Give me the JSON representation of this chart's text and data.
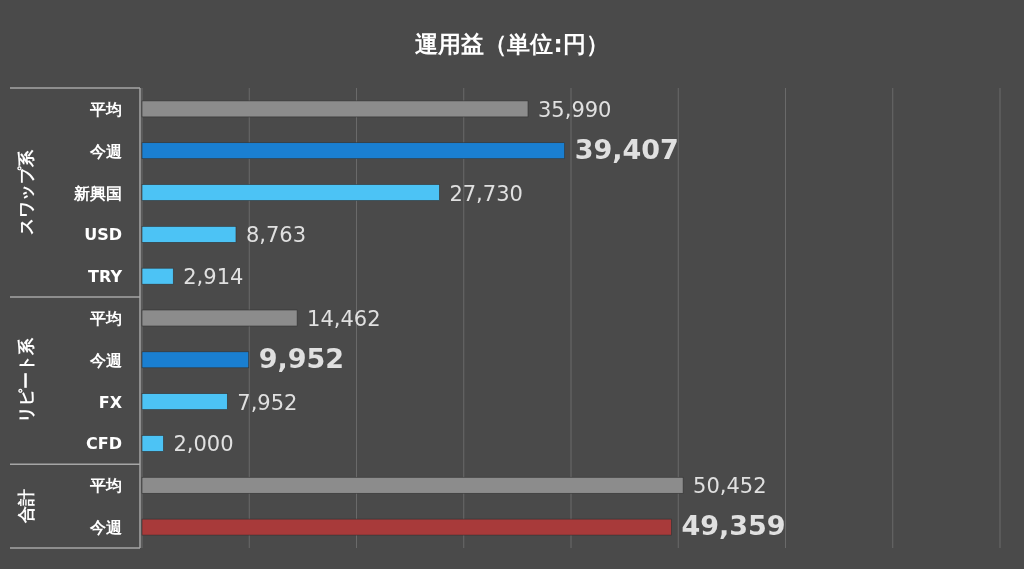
{
  "chart_data": {
    "type": "bar",
    "orientation": "horizontal",
    "title": "運用益（単位:円）",
    "categories": [
      "平均",
      "今週",
      "新興国",
      "USD",
      "TRY",
      "平均",
      "今週",
      "FX",
      "CFD",
      "平均",
      "今週"
    ],
    "values": [
      35990,
      39407,
      27730,
      8763,
      2914,
      14462,
      9952,
      7952,
      2000,
      50452,
      49359
    ],
    "colors": [
      "#8c8c8c",
      "#1a7fd1",
      "#4cc3f5",
      "#4cc3f5",
      "#4cc3f5",
      "#8c8c8c",
      "#1a7fd1",
      "#4cc3f5",
      "#4cc3f5",
      "#8c8c8c",
      "#a83a3a"
    ],
    "value_labels": [
      "35,990",
      "**39,407**",
      "27,730",
      "8,763",
      "2,914",
      "14,462",
      "**9,952**",
      "7,952",
      "2,000",
      "50,452",
      "**49,359**"
    ],
    "annotations": [
      "スワップ系",
      "リピート系",
      "合計"
    ],
    "xlim": [
      0,
      80000
    ],
    "xticks": [
      {
        "value": 0,
        "label": null
      },
      {
        "value": 10000,
        "label": null
      },
      {
        "value": 20000,
        "label": null
      },
      {
        "value": 30000,
        "label": null
      },
      {
        "value": 40000,
        "label": null
      },
      {
        "value": 50000,
        "label": null
      },
      {
        "value": 60000,
        "label": null
      },
      {
        "value": 70000,
        "label": null
      },
      {
        "value": 80000,
        "label": null
      }
    ],
    "grid": "x",
    "tick_labels": "y"
  }
}
